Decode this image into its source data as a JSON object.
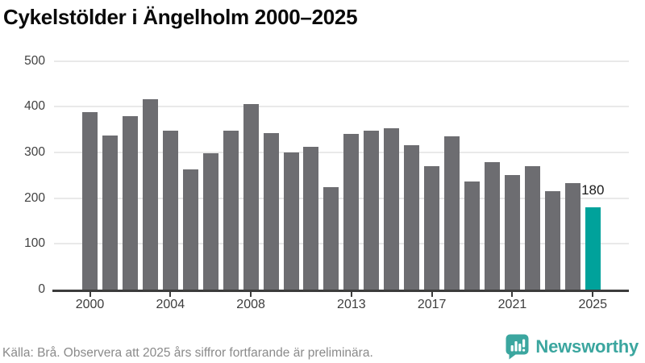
{
  "title": "Cykelstölder i Ängelholm 2000–2025",
  "chart_data": {
    "type": "bar",
    "x": [
      2000,
      2001,
      2002,
      2003,
      2004,
      2005,
      2006,
      2007,
      2008,
      2009,
      2010,
      2011,
      2012,
      2013,
      2014,
      2015,
      2016,
      2017,
      2018,
      2019,
      2020,
      2021,
      2022,
      2023,
      2024,
      2025
    ],
    "values": [
      389,
      337,
      380,
      417,
      348,
      263,
      298,
      348,
      405,
      342,
      300,
      313,
      224,
      341,
      348,
      353,
      316,
      270,
      336,
      237,
      278,
      251,
      270,
      215,
      233,
      180
    ],
    "title": "Cykelstölder i Ängelholm 2000–2025",
    "xlabel": "",
    "ylabel": "",
    "ylim": [
      0,
      500
    ],
    "y_ticks": [
      0,
      100,
      200,
      300,
      400,
      500
    ],
    "x_tick_years": [
      2000,
      2004,
      2008,
      2013,
      2017,
      2021,
      2025
    ],
    "grid": true,
    "legend": "none",
    "bar_color": "#6d6d71",
    "highlight_color": "#00a29b",
    "highlight_index": 25,
    "annotation": {
      "index": 25,
      "label": "180"
    }
  },
  "footer": {
    "source": "Källa: Brå. Observera att 2025 års siffror fortfarande är preliminära."
  },
  "logo": {
    "text": "Newsworthy",
    "color": "#3ba69f",
    "icon": "newsworthy-speech-bubble-chart-icon"
  }
}
